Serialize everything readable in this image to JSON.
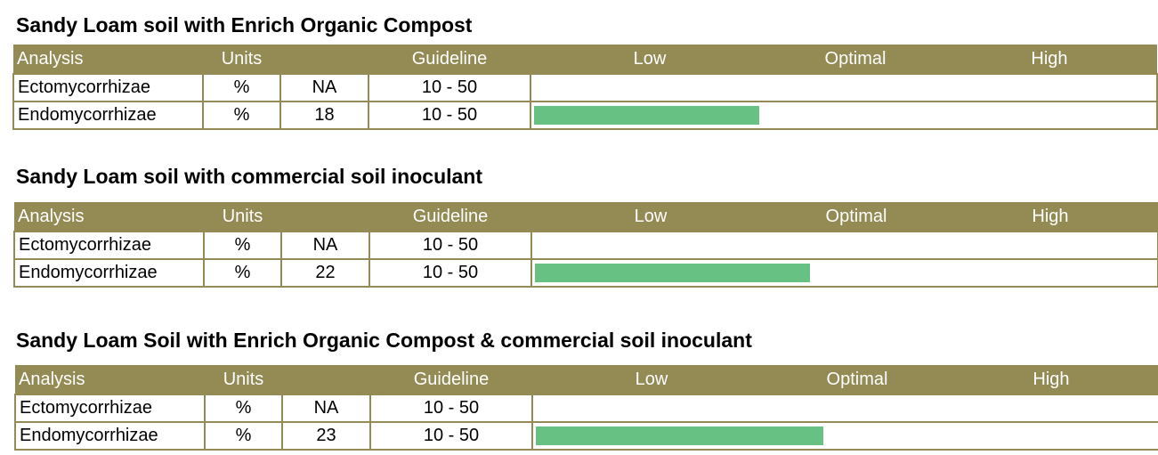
{
  "columns": {
    "analysis": "Analysis",
    "units": "Units",
    "guideline": "Guideline",
    "low": "Low",
    "optimal": "Optimal",
    "high": "High"
  },
  "colors": {
    "header_bg": "#948a54",
    "bar": "#66c183"
  },
  "chart_data": [
    {
      "type": "bar",
      "title": "Sandy Loam soil with Enrich Organic Compost",
      "rows": [
        {
          "analysis": "Ectomycorrhizae",
          "units": "%",
          "value": "NA",
          "guideline": "10 - 50",
          "bar_value": null
        },
        {
          "analysis": "Endomycorrhizae",
          "units": "%",
          "value": "18",
          "guideline": "10 - 50",
          "bar_value": 18
        }
      ]
    },
    {
      "type": "bar",
      "title": "Sandy Loam soil with commercial soil inoculant",
      "rows": [
        {
          "analysis": "Ectomycorrhizae",
          "units": "%",
          "value": "NA",
          "guideline": "10 - 50",
          "bar_value": null
        },
        {
          "analysis": "Endomycorrhizae",
          "units": "%",
          "value": "22",
          "guideline": "10 - 50",
          "bar_value": 22
        }
      ]
    },
    {
      "type": "bar",
      "title": "Sandy Loam Soil with Enrich Organic Compost & commercial soil inoculant",
      "rows": [
        {
          "analysis": "Ectomycorrhizae",
          "units": "%",
          "value": "NA",
          "guideline": "10 - 50",
          "bar_value": null
        },
        {
          "analysis": "Endomycorrhizae",
          "units": "%",
          "value": "23",
          "guideline": "10 - 50",
          "bar_value": 23
        }
      ]
    }
  ]
}
